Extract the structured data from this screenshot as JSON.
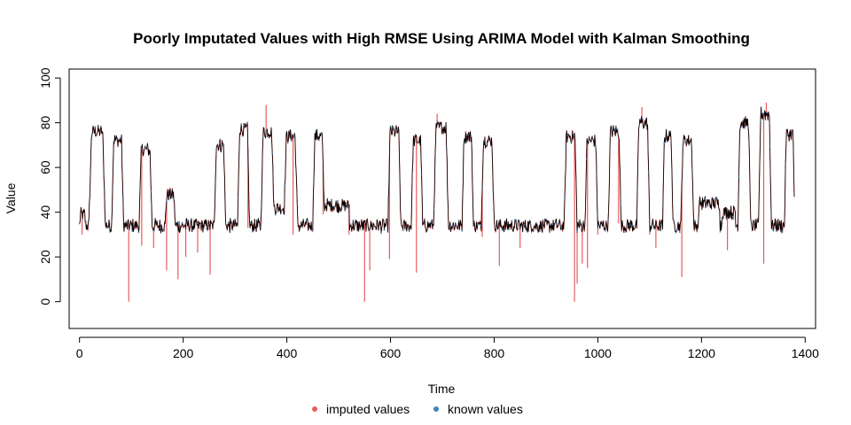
{
  "chart_data": {
    "type": "line",
    "title": "Poorly Imputated Values with High RMSE Using ARIMA Model with Kalman Smoothing",
    "xlabel": "Time",
    "ylabel": "Value",
    "xlim": [
      -20,
      1420
    ],
    "ylim": [
      -12,
      104
    ],
    "xticks": [
      0,
      200,
      400,
      600,
      800,
      1000,
      1200,
      1400
    ],
    "yticks": [
      0,
      20,
      40,
      60,
      80,
      100
    ],
    "grid": false,
    "legend_position": "bottom",
    "legend": [
      {
        "label": "imputed values",
        "color": "#e85c5c"
      },
      {
        "label": "known values",
        "color": "#4682b4"
      }
    ],
    "series_colors": {
      "imputed": "#e85c5c",
      "known": "#4682b4",
      "line": "#000000"
    },
    "n_points": 1380,
    "baseline_level": 34,
    "segments": [
      {
        "x": [
          0,
          12
        ],
        "y": 39
      },
      {
        "x": [
          18,
          50
        ],
        "y": 76
      },
      {
        "x": [
          62,
          85
        ],
        "y": 72
      },
      {
        "x": [
          115,
          140
        ],
        "y": 68
      },
      {
        "x": [
          165,
          185
        ],
        "y": 48
      },
      {
        "x": [
          260,
          282
        ],
        "y": 70
      },
      {
        "x": [
          305,
          328
        ],
        "y": 77
      },
      {
        "x": [
          350,
          375
        ],
        "y": 76
      },
      {
        "x": [
          395,
          420
        ],
        "y": 74
      },
      {
        "x": [
          450,
          472
        ],
        "y": 74
      },
      {
        "x": [
          595,
          620
        ],
        "y": 76
      },
      {
        "x": [
          640,
          662
        ],
        "y": 72
      },
      {
        "x": [
          683,
          712
        ],
        "y": 78
      },
      {
        "x": [
          738,
          760
        ],
        "y": 74
      },
      {
        "x": [
          775,
          800
        ],
        "y": 72
      },
      {
        "x": [
          935,
          960
        ],
        "y": 74
      },
      {
        "x": [
          975,
          1000
        ],
        "y": 72
      },
      {
        "x": [
          1020,
          1045
        ],
        "y": 76
      },
      {
        "x": [
          1075,
          1100
        ],
        "y": 80
      },
      {
        "x": [
          1125,
          1145
        ],
        "y": 74
      },
      {
        "x": [
          1160,
          1185
        ],
        "y": 72
      },
      {
        "x": [
          1270,
          1295
        ],
        "y": 80
      },
      {
        "x": [
          1310,
          1335
        ],
        "y": 84
      },
      {
        "x": [
          1360,
          1380
        ],
        "y": 75
      }
    ],
    "bumps": [
      {
        "x": [
          360,
          420
        ],
        "y": 42
      },
      {
        "x": [
          470,
          520
        ],
        "y": 43
      },
      {
        "x": [
          1195,
          1235
        ],
        "y": 44
      },
      {
        "x": [
          1240,
          1265
        ],
        "y": 40
      }
    ],
    "imputed_dips": [
      [
        5,
        30
      ],
      [
        95,
        0
      ],
      [
        120,
        25
      ],
      [
        143,
        24
      ],
      [
        168,
        14
      ],
      [
        190,
        10
      ],
      [
        205,
        20
      ],
      [
        228,
        22
      ],
      [
        252,
        12
      ],
      [
        300,
        36
      ],
      [
        325,
        33
      ],
      [
        350,
        38
      ],
      [
        412,
        30
      ],
      [
        470,
        39
      ],
      [
        520,
        30
      ],
      [
        550,
        0
      ],
      [
        560,
        14
      ],
      [
        598,
        19
      ],
      [
        650,
        13
      ],
      [
        712,
        33
      ],
      [
        777,
        29
      ],
      [
        810,
        16
      ],
      [
        850,
        24
      ],
      [
        955,
        0
      ],
      [
        960,
        8
      ],
      [
        970,
        17
      ],
      [
        980,
        15
      ],
      [
        1000,
        30
      ],
      [
        1040,
        35
      ],
      [
        1100,
        30
      ],
      [
        1112,
        24
      ],
      [
        1162,
        11
      ],
      [
        1250,
        23
      ],
      [
        1320,
        17
      ],
      [
        1341,
        35
      ]
    ],
    "imputed_spikes": [
      [
        360,
        88
      ],
      [
        690,
        84
      ],
      [
        1085,
        87
      ],
      [
        1325,
        89
      ]
    ]
  }
}
